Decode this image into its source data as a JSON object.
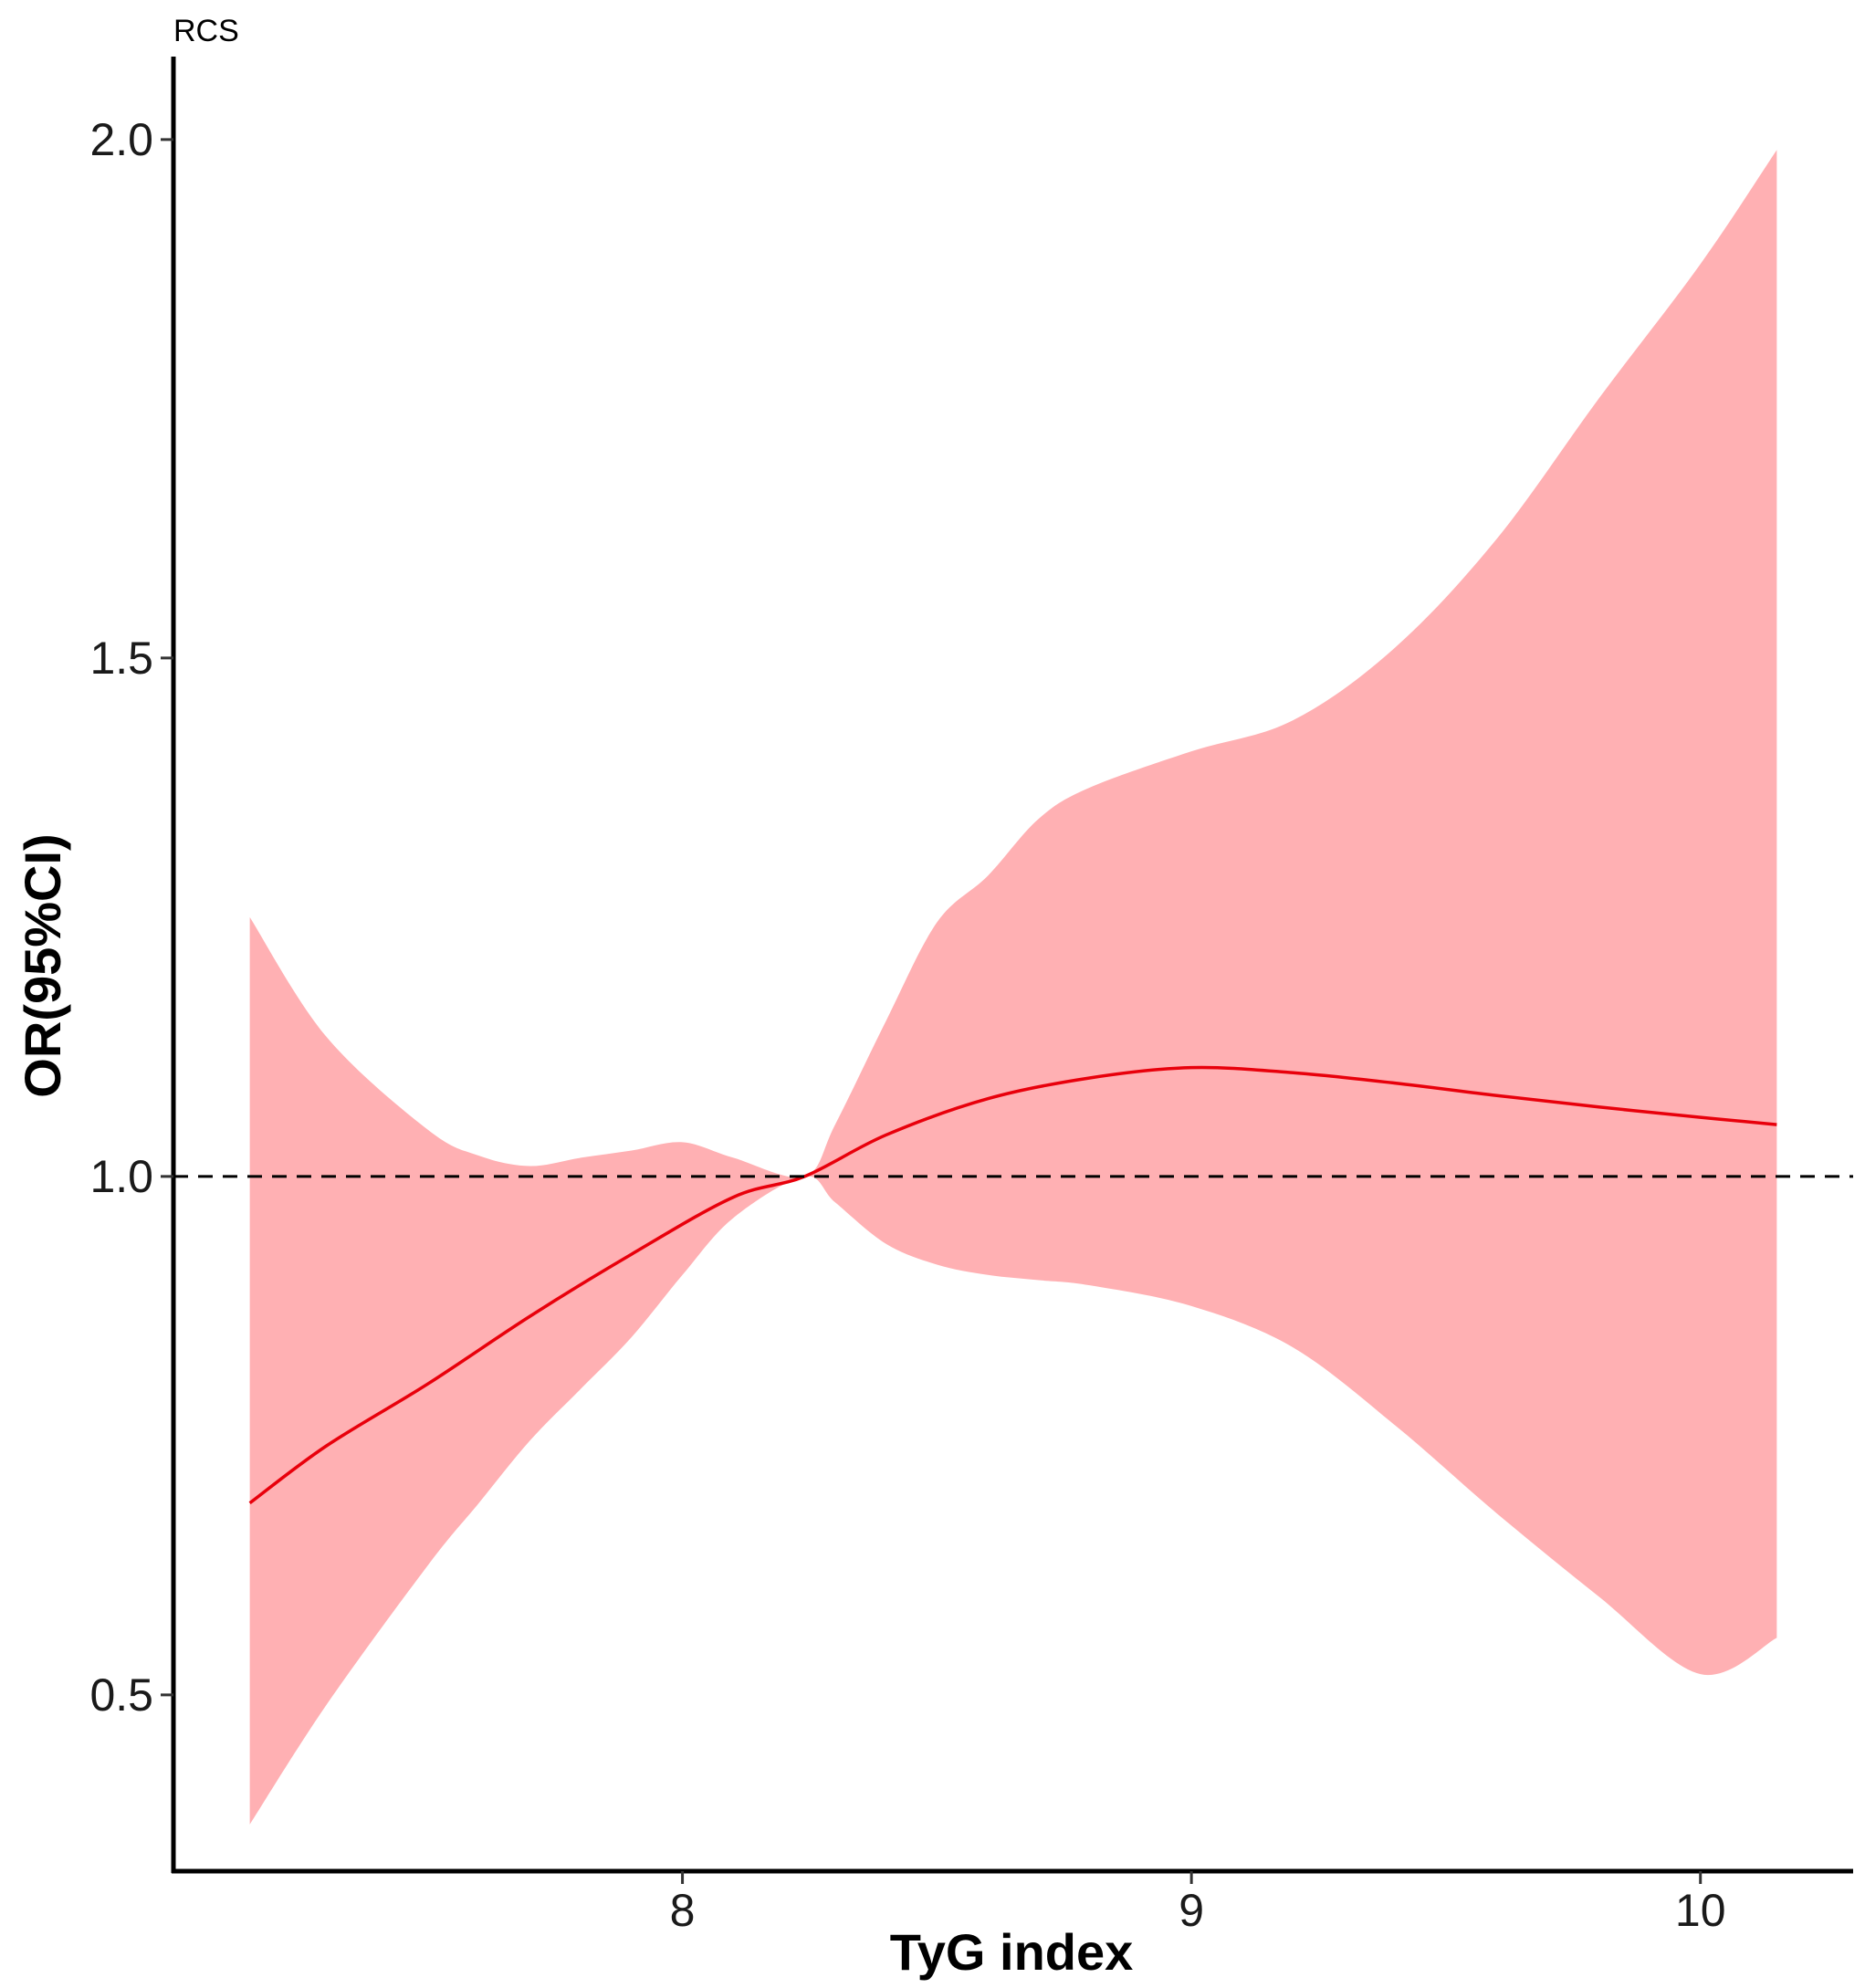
{
  "chart_data": {
    "type": "line",
    "tag": "RCS",
    "xlabel": "TyG index",
    "ylabel": "OR(95%CI)",
    "xlim": [
      7.0,
      10.3
    ],
    "ylim": [
      0.33,
      2.08
    ],
    "x_ticks": [
      8,
      9,
      10
    ],
    "x_tick_labels": [
      "8",
      "9",
      "10"
    ],
    "y_ticks": [
      0.5,
      1.0,
      1.5,
      2.0
    ],
    "y_tick_labels": [
      "0.5",
      "1.0",
      "1.5",
      "2.0"
    ],
    "reference_line": {
      "y": 1.0,
      "style": "dashed",
      "color": "#000000"
    },
    "grid": false,
    "legend": "none",
    "series": [
      {
        "type": "line",
        "color": "#e8000b",
        "x": [
          7.15,
          7.3,
          7.5,
          7.7,
          7.9,
          8.1,
          8.24,
          8.4,
          8.6,
          8.8,
          9.0,
          9.2,
          9.4,
          9.6,
          9.8,
          10.0,
          10.15
        ],
        "y": [
          0.685,
          0.74,
          0.8,
          0.865,
          0.925,
          0.98,
          1.0,
          1.04,
          1.075,
          1.095,
          1.105,
          1.1,
          1.09,
          1.078,
          1.067,
          1.057,
          1.05
        ]
      },
      {
        "type": "ribbon",
        "color": "#ffb0b3",
        "x": [
          7.15,
          7.3,
          7.5,
          7.6,
          7.7,
          7.8,
          7.9,
          8.0,
          8.1,
          8.24,
          8.3,
          8.4,
          8.5,
          8.6,
          8.7,
          8.8,
          9.0,
          9.2,
          9.4,
          9.6,
          9.8,
          10.0,
          10.15
        ],
        "lower": [
          0.375,
          0.49,
          0.625,
          0.685,
          0.745,
          0.795,
          0.845,
          0.905,
          0.96,
          1.0,
          0.975,
          0.935,
          0.915,
          0.905,
          0.9,
          0.895,
          0.875,
          0.835,
          0.76,
          0.675,
          0.595,
          0.52,
          0.555
        ],
        "upper": [
          1.25,
          1.135,
          1.045,
          1.02,
          1.01,
          1.018,
          1.025,
          1.033,
          1.018,
          1.0,
          1.05,
          1.15,
          1.245,
          1.29,
          1.345,
          1.375,
          1.41,
          1.44,
          1.51,
          1.615,
          1.75,
          1.88,
          1.99
        ]
      }
    ]
  }
}
